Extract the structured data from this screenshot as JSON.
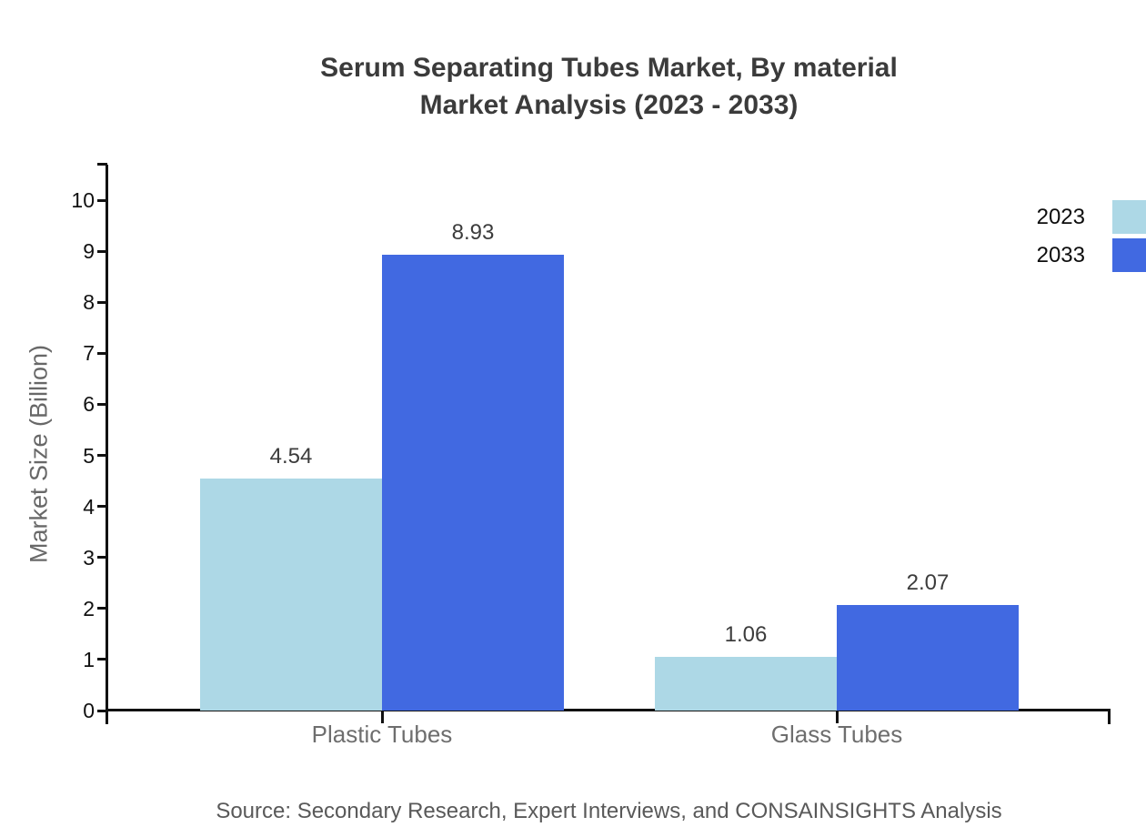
{
  "title": {
    "line1": "Serum Separating Tubes Market, By material",
    "line2": "Market Analysis (2023 - 2033)"
  },
  "source": "Source: Secondary Research, Expert Interviews, and CONSAINSIGHTS Analysis",
  "chart_data": {
    "type": "bar",
    "title": "Serum Separating Tubes Market, By material Market Analysis (2023 - 2033)",
    "categories": [
      "Plastic Tubes",
      "Glass Tubes"
    ],
    "series": [
      {
        "name": "2023",
        "color": "#ADD8E6",
        "values": [
          4.54,
          1.06
        ]
      },
      {
        "name": "2033",
        "color": "#4169E1",
        "values": [
          8.93,
          2.07
        ]
      }
    ],
    "xlabel": "",
    "ylabel": "Market Size (Billion)",
    "ylim": [
      0,
      10
    ],
    "yticks": [
      0,
      1,
      2,
      3,
      4,
      5,
      6,
      7,
      8,
      9,
      10
    ],
    "grid": false,
    "legend_position": "top-right",
    "value_label_decimals": 2
  },
  "legend": {
    "items": [
      {
        "label": "2023",
        "color": "#ADD8E6"
      },
      {
        "label": "2033",
        "color": "#4169E1"
      }
    ]
  },
  "colors": {
    "axis": "#111111",
    "title_text": "#3b3b3b",
    "tick_text": "#111111",
    "category_text": "#6e6e6e",
    "value_text": "#3c3c3c",
    "ylabel_text": "#686868",
    "source_text": "#595959",
    "background": "#ffffff"
  }
}
